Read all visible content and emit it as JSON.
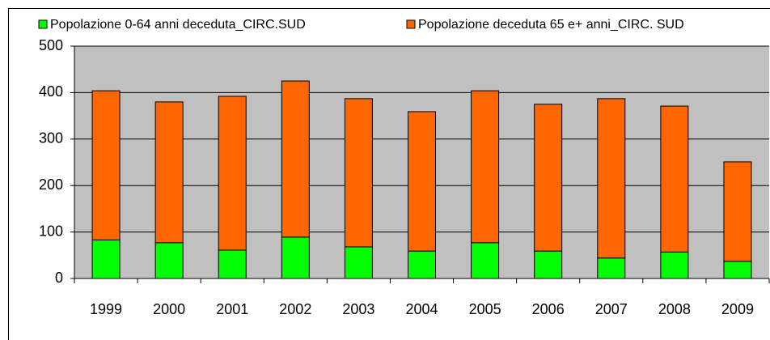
{
  "chart_data": {
    "type": "stacked-bar",
    "categories": [
      "1999",
      "2000",
      "2001",
      "2002",
      "2003",
      "2004",
      "2005",
      "2006",
      "2007",
      "2008",
      "2009"
    ],
    "series": [
      {
        "name": "Popolazione 0-64 anni deceduta_CIRC.SUD",
        "color": "#00ff00",
        "values": [
          83,
          77,
          61,
          89,
          68,
          59,
          77,
          59,
          44,
          57,
          37
        ]
      },
      {
        "name": "Popolazione deceduta 65 e+ anni_CIRC. SUD",
        "color": "#ff6600",
        "values": [
          321,
          303,
          331,
          336,
          319,
          300,
          327,
          316,
          343,
          314,
          214
        ]
      }
    ],
    "ylim": [
      0,
      500
    ],
    "yticks": [
      0,
      100,
      200,
      300,
      400,
      500
    ],
    "grid": true,
    "legend": "top"
  }
}
